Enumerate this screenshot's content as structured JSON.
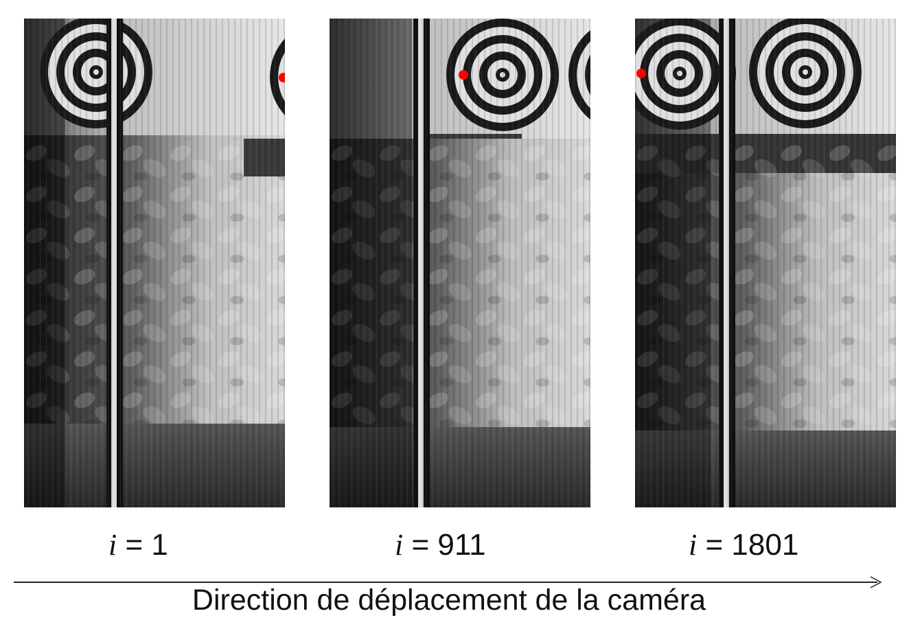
{
  "frames": [
    {
      "id": "frame-1",
      "variable": "i",
      "operator": "=",
      "value": "1"
    },
    {
      "id": "frame-911",
      "variable": "i",
      "operator": "=",
      "value": "911"
    },
    {
      "id": "frame-1801",
      "variable": "i",
      "operator": "=",
      "value": "1801"
    }
  ],
  "axis": {
    "label": "Direction de déplacement de la caméra"
  },
  "colors": {
    "marker": "#ff0000",
    "target": "#1a1a1a"
  }
}
